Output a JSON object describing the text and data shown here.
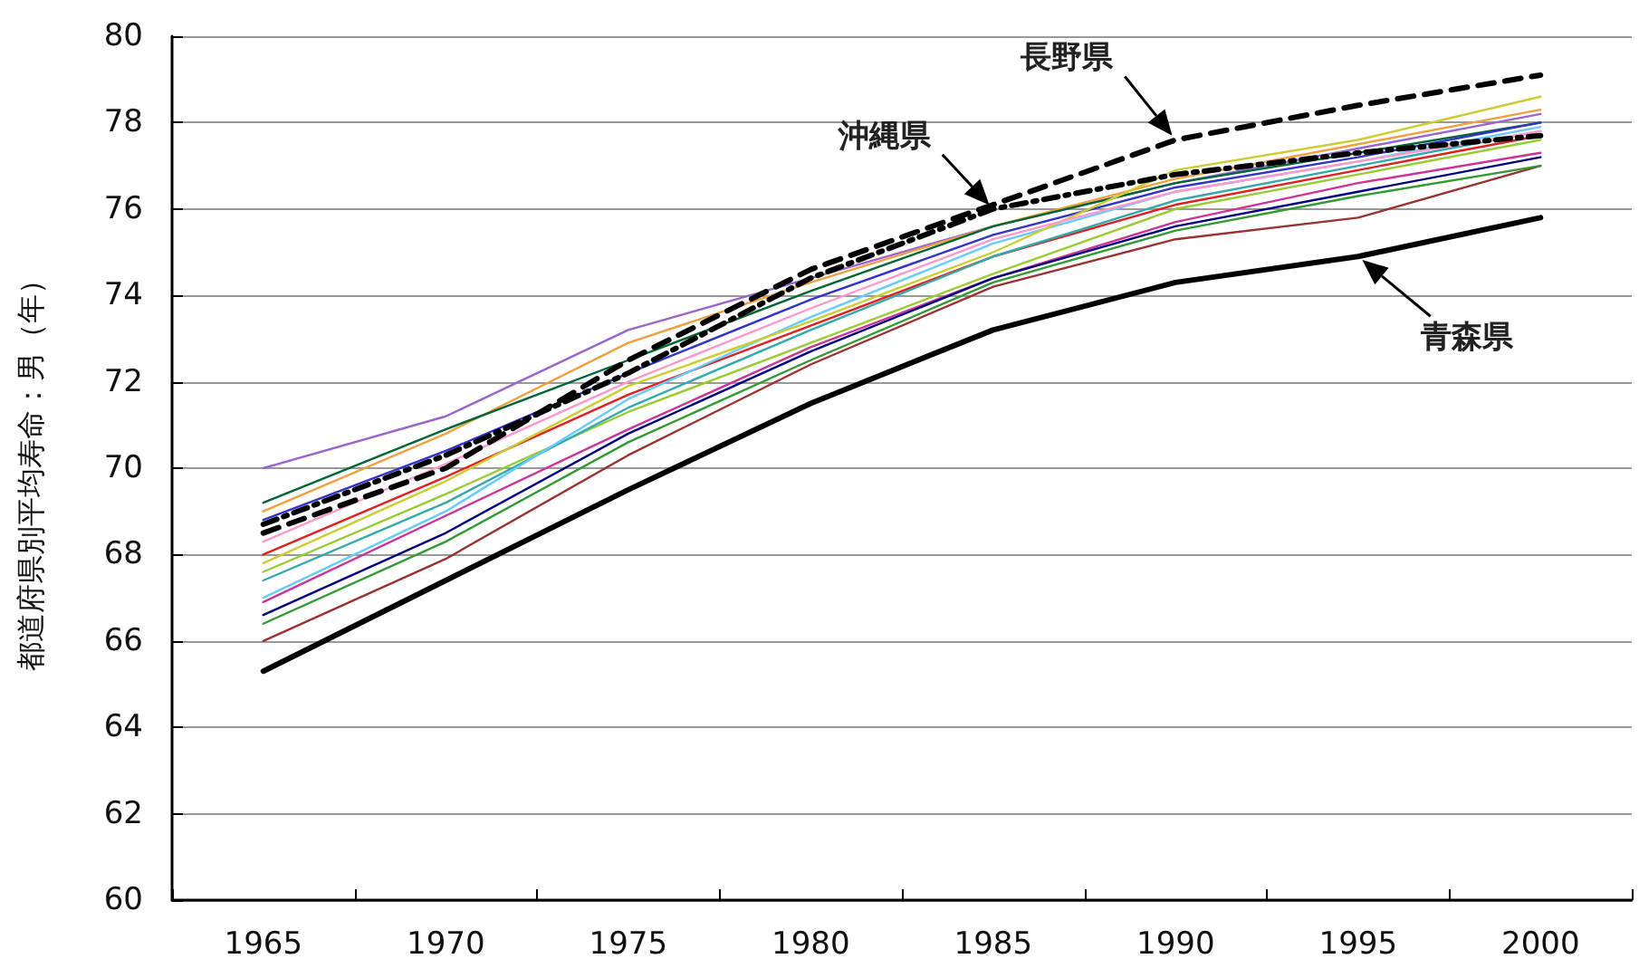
{
  "chart_data": {
    "type": "line",
    "ylabel": "都道府県別平均寿命：男（年）",
    "categories": [
      "1965",
      "1970",
      "1975",
      "1980",
      "1985",
      "1990",
      "1995",
      "2000"
    ],
    "ylim": [
      60,
      80
    ],
    "yticks": [
      60,
      62,
      64,
      66,
      68,
      70,
      72,
      74,
      76,
      78,
      80
    ],
    "grid": "y",
    "marker": "none",
    "annotations": [
      {
        "text": "沖縄県",
        "x": "1985",
        "y": 76.0
      },
      {
        "text": "長野県",
        "x": "1990",
        "y": 77.6
      },
      {
        "text": "青森県",
        "x": "1995",
        "y": 74.9
      }
    ],
    "series": [
      {
        "color": "#9966cc",
        "values": [
          70.0,
          71.2,
          73.2,
          74.4,
          75.6,
          76.6,
          77.4,
          78.2
        ]
      },
      {
        "color": "#f0a040",
        "values": [
          69.0,
          70.8,
          72.9,
          74.3,
          75.6,
          76.7,
          77.5,
          78.3
        ]
      },
      {
        "color": "#006633",
        "values": [
          69.2,
          70.9,
          72.5,
          74.1,
          75.6,
          76.6,
          77.3,
          78.0
        ]
      },
      {
        "color": "#3333cc",
        "values": [
          68.8,
          70.4,
          72.2,
          73.9,
          75.4,
          76.5,
          77.2,
          78.0
        ]
      },
      {
        "color": "#e02020",
        "values": [
          68.0,
          69.8,
          71.7,
          73.3,
          74.9,
          76.1,
          76.9,
          77.7
        ]
      },
      {
        "color": "#99cc33",
        "values": [
          67.6,
          69.4,
          71.3,
          72.9,
          74.5,
          76.0,
          76.8,
          77.6
        ]
      },
      {
        "color": "#33aaaa",
        "values": [
          67.4,
          69.2,
          71.4,
          73.2,
          74.9,
          76.2,
          77.0,
          77.8
        ]
      },
      {
        "color": "#cc3399",
        "values": [
          66.9,
          68.9,
          70.9,
          72.8,
          74.4,
          75.7,
          76.6,
          77.3
        ]
      },
      {
        "color": "#993333",
        "values": [
          66.0,
          67.9,
          70.3,
          72.4,
          74.2,
          75.3,
          75.8,
          77.0
        ]
      },
      {
        "color": "#000080",
        "values": [
          66.6,
          68.5,
          70.8,
          72.7,
          74.4,
          75.6,
          76.4,
          77.2
        ]
      },
      {
        "color": "#66ccff",
        "values": [
          67.0,
          69.0,
          71.6,
          73.5,
          75.2,
          76.4,
          77.1,
          77.9
        ]
      },
      {
        "color": "#cccc33",
        "values": [
          67.8,
          69.7,
          71.9,
          73.4,
          75.0,
          76.9,
          77.6,
          78.6
        ]
      },
      {
        "color": "#339933",
        "values": [
          66.4,
          68.3,
          70.6,
          72.5,
          74.3,
          75.5,
          76.3,
          77.0
        ]
      },
      {
        "color": "#ff99cc",
        "values": [
          68.3,
          70.1,
          72.0,
          73.7,
          75.3,
          76.4,
          77.1,
          77.8
        ]
      },
      {
        "color": "#000000",
        "line_style": "dotted",
        "values": [
          68.7,
          70.3,
          72.2,
          74.4,
          76.0,
          76.8,
          77.3,
          77.7
        ]
      },
      {
        "color": "#000000",
        "line_style": "dashed",
        "values": [
          68.5,
          70.0,
          72.5,
          74.6,
          76.1,
          77.6,
          78.4,
          79.1
        ]
      },
      {
        "color": "#000000",
        "line_style": "solid",
        "values": [
          65.3,
          67.4,
          69.5,
          71.5,
          73.2,
          74.3,
          74.9,
          75.8
        ]
      }
    ]
  }
}
